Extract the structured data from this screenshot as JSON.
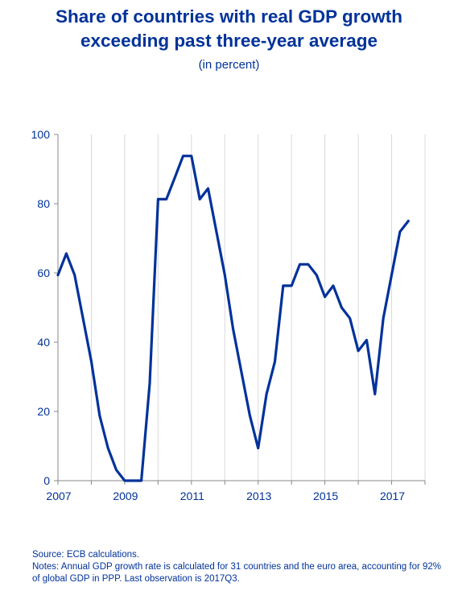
{
  "title_line1": "Share of countries with real GDP growth",
  "title_line2": "exceeding past three-year average",
  "subtitle": "(in percent)",
  "source": "Source: ECB calculations.",
  "notes": "Notes: Annual GDP growth rate is calculated for 31 countries and the euro area, accounting for 92% of global GDP in PPP. Last observation is 2017Q3.",
  "colors": {
    "text": "#003299",
    "line": "#003299",
    "axis": "#888888",
    "grid": "#d9d9d9"
  },
  "chart_data": {
    "type": "line",
    "title": "Share of countries with real GDP growth exceeding past three-year average",
    "subtitle": "(in percent)",
    "xlabel": "",
    "ylabel": "",
    "xlim": [
      2007,
      2018
    ],
    "ylim": [
      0,
      100
    ],
    "y_ticks": [
      0,
      20,
      40,
      60,
      80,
      100
    ],
    "x_ticks": [
      2007,
      2009,
      2011,
      2013,
      2015,
      2017
    ],
    "grid": "vertical",
    "legend": "none",
    "series": [
      {
        "x": [
          2007.0,
          2007.25,
          2007.5,
          2007.75,
          2008.0,
          2008.25,
          2008.5,
          2008.75,
          2009.0,
          2009.25,
          2009.5,
          2009.75,
          2010.0,
          2010.25,
          2010.5,
          2010.75,
          2011.0,
          2011.25,
          2011.5,
          2011.75,
          2012.0,
          2012.25,
          2012.5,
          2012.75,
          2013.0,
          2013.25,
          2013.5,
          2013.75,
          2014.0,
          2014.25,
          2014.5,
          2014.75,
          2015.0,
          2015.25,
          2015.5,
          2015.75,
          2016.0,
          2016.25,
          2016.5,
          2016.75,
          2017.0,
          2017.25,
          2017.5
        ],
        "values": [
          59.4,
          65.6,
          59.4,
          46.9,
          34.4,
          18.8,
          9.4,
          3.1,
          0,
          0,
          0,
          28.1,
          81.3,
          81.3,
          87.5,
          93.8,
          93.8,
          81.3,
          84.4,
          71.9,
          59.4,
          43.8,
          31.3,
          18.8,
          9.4,
          25.0,
          34.4,
          56.3,
          56.3,
          62.5,
          62.5,
          59.4,
          53.1,
          56.3,
          50.0,
          46.9,
          37.5,
          40.6,
          25.0,
          46.9,
          59.4,
          71.9,
          75.0
        ]
      }
    ]
  }
}
